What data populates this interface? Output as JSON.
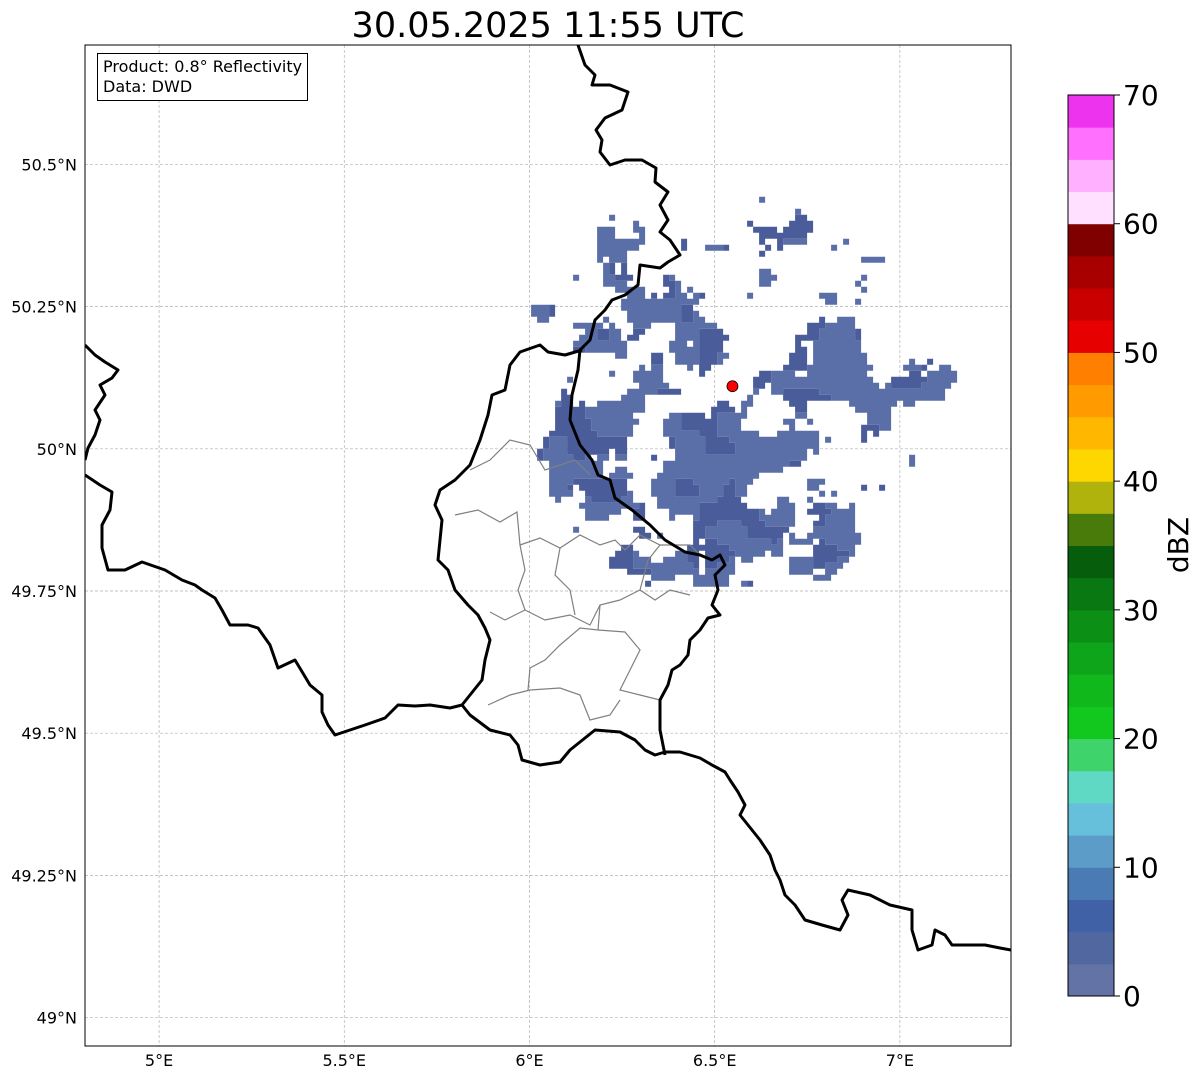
{
  "title": "30.05.2025 11:55 UTC",
  "info_box": {
    "product": "Product: 0.8° Reflectivity",
    "data": "Data: DWD"
  },
  "map": {
    "lon_range": [
      4.8,
      7.3
    ],
    "lat_range": [
      48.95,
      50.71
    ],
    "lon_ticks": [
      {
        "value": 5.0,
        "label": "5°E"
      },
      {
        "value": 5.5,
        "label": "5.5°E"
      },
      {
        "value": 6.0,
        "label": "6°E"
      },
      {
        "value": 6.5,
        "label": "6.5°E"
      },
      {
        "value": 7.0,
        "label": "7°E"
      }
    ],
    "lat_ticks": [
      {
        "value": 50.5,
        "label": "50.5°N"
      },
      {
        "value": 50.25,
        "label": "50.25°N"
      },
      {
        "value": 50.0,
        "label": "50°N"
      },
      {
        "value": 49.75,
        "label": "49.75°N"
      },
      {
        "value": 49.5,
        "label": "49.5°N"
      },
      {
        "value": 49.25,
        "label": "49.25°N"
      },
      {
        "value": 49.0,
        "label": "49°N"
      }
    ],
    "grid": true,
    "radar_site": {
      "lon": 6.548,
      "lat": 50.11
    },
    "radar_range_deg": {
      "lon": 0.63,
      "lat": 0.4
    },
    "colors": {
      "echo_main": "#5a6fa8",
      "echo_dark": "#4a5d9a",
      "border": "#000000",
      "admin": "#808080",
      "site": "#ff0000",
      "grid": "#b0b0b0"
    }
  },
  "colorbar": {
    "label": "dBZ",
    "min": 0,
    "max": 70,
    "ticks": [
      0,
      10,
      20,
      30,
      40,
      50,
      60,
      70
    ],
    "colors": [
      "#6373a6",
      "#5067a0",
      "#4161a6",
      "#4b7bb4",
      "#5c9cc9",
      "#66c0dc",
      "#5fd8c4",
      "#3ed46b",
      "#12c81e",
      "#10b81c",
      "#0fa51a",
      "#0c8f15",
      "#0a7812",
      "#065e0c",
      "#487b0a",
      "#b0b30c",
      "#ffd700",
      "#ffb700",
      "#ff9a00",
      "#ff7f00",
      "#e60000",
      "#c80000",
      "#a80000",
      "#800000",
      "#ffe0ff",
      "#ffb0ff",
      "#ff70ff",
      "#ee33ee"
    ]
  }
}
